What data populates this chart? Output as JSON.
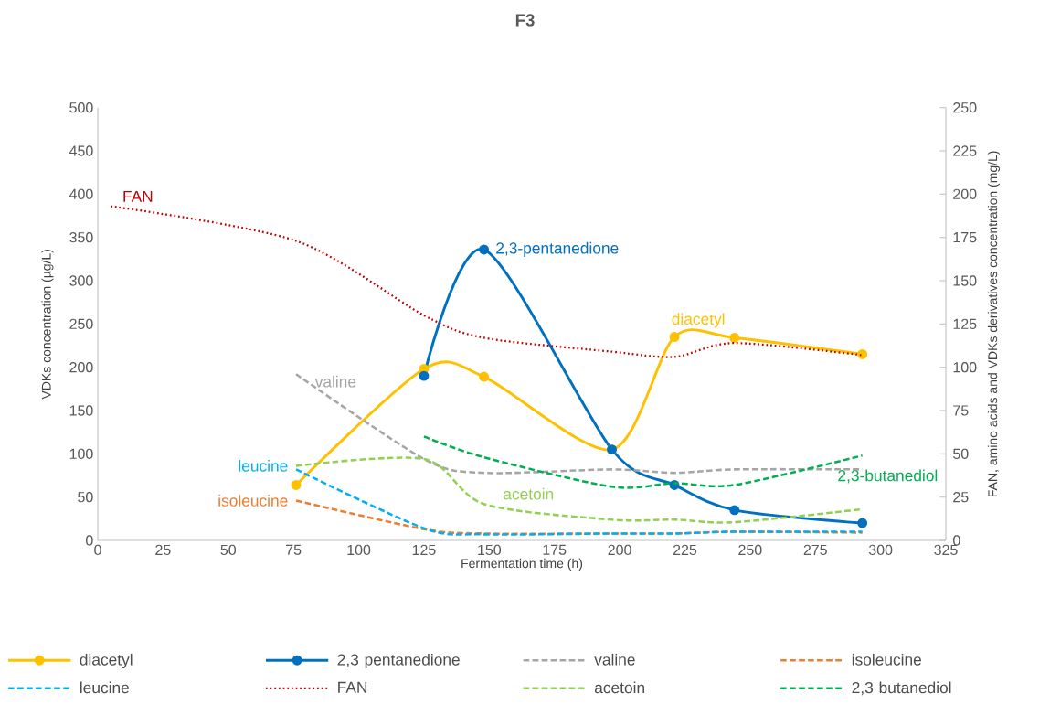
{
  "chart_data": {
    "type": "line",
    "title": "F3",
    "xlabel": "Fermentation time (h)",
    "ylabel": "VDKs concentration (µg/L)",
    "y2label": "FAN, amino acids and VDKs derivatives concentration (mg/L)",
    "xlim": [
      0,
      325
    ],
    "xticks": [
      0,
      25,
      50,
      75,
      100,
      125,
      150,
      175,
      200,
      225,
      250,
      275,
      300,
      325
    ],
    "ylim": [
      0,
      500
    ],
    "yticks": [
      0,
      50,
      100,
      150,
      200,
      250,
      300,
      350,
      400,
      450,
      500
    ],
    "y2lim": [
      0,
      250
    ],
    "y2ticks": [
      0,
      25,
      50,
      75,
      100,
      125,
      150,
      175,
      200,
      225,
      250
    ],
    "legend": "bottom",
    "grid": false,
    "x": [
      76,
      125,
      148,
      197,
      221,
      244,
      293
    ],
    "series": [
      {
        "name": "diacetyl",
        "color": "#ffc000",
        "marker": "circle",
        "line_style": "solid",
        "values": [
          64,
          198,
          189,
          105,
          235,
          234,
          215
        ]
      },
      {
        "name": "2,3 pentanedione",
        "color": "#0070c0",
        "marker": "circle",
        "line_style": "solid",
        "x": [
          125,
          148,
          197,
          221,
          244,
          293
        ],
        "values": [
          190,
          336,
          105,
          64,
          35,
          20
        ]
      },
      {
        "name": "valine",
        "color": "#a5a5a5",
        "marker": "none",
        "line_style": "dashed",
        "axis": "y2",
        "values": [
          96,
          47,
          39,
          41,
          39,
          41,
          41
        ]
      },
      {
        "name": "isoleucine",
        "color": "#ed7d31",
        "marker": "none",
        "line_style": "dashed",
        "axis": "y2",
        "values": [
          23,
          6.5,
          4,
          4,
          4,
          5,
          4.5
        ]
      },
      {
        "name": "leucine",
        "color": "#00b0f0",
        "marker": "none",
        "line_style": "dashed",
        "axis": "y2",
        "values": [
          41,
          7,
          3.5,
          4,
          4,
          5,
          5
        ]
      },
      {
        "name": "FAN",
        "color": "#c00000",
        "marker": "none",
        "line_style": "dotted",
        "axis": "y2",
        "x": [
          5,
          76,
          125,
          148,
          197,
          221,
          244,
          293
        ],
        "values": [
          193,
          173,
          130,
          117,
          109,
          106,
          114,
          107
        ]
      },
      {
        "name": "acetoin",
        "color": "#92d050",
        "marker": "none",
        "line_style": "dashed",
        "axis": "y2",
        "values": [
          43,
          47,
          21,
          12,
          12,
          10.5,
          18
        ]
      },
      {
        "name": "2,3 butanediol",
        "color": "#00b050",
        "marker": "none",
        "line_style": "dashed",
        "axis": "y2",
        "x": [
          125,
          148,
          197,
          221,
          244,
          293
        ],
        "values": [
          60,
          48,
          31,
          33,
          32,
          49
        ]
      }
    ],
    "annotations": [
      "diacetyl",
      "2,3-pentanedione",
      "valine",
      "isoleucine",
      "leucine",
      "FAN",
      "acetoin",
      "2,3-butanediol"
    ]
  }
}
